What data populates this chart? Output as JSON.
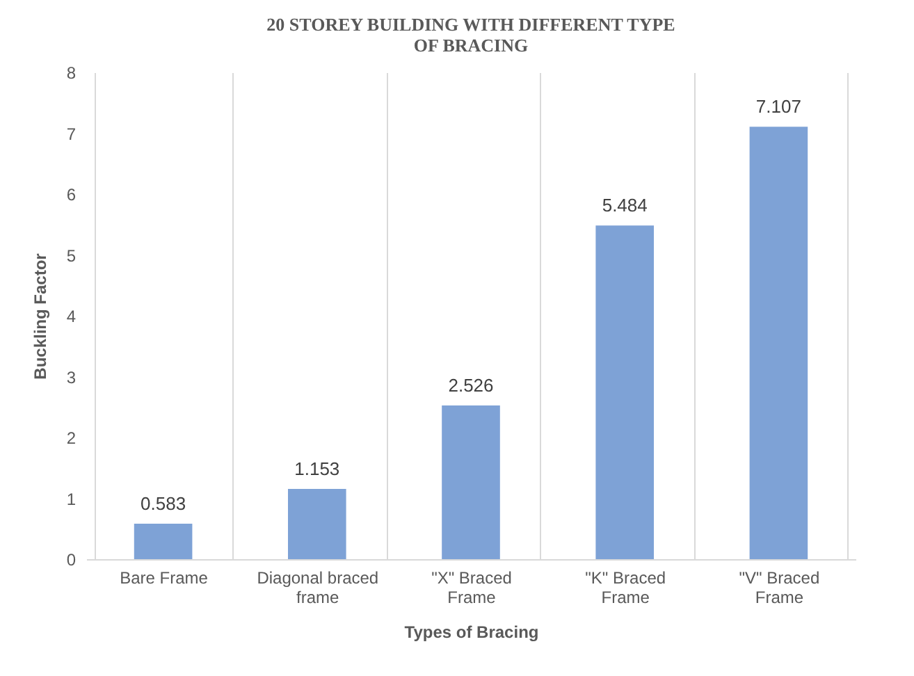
{
  "chart_data": {
    "type": "bar",
    "title": [
      "20 STOREY BUILDING WITH DIFFERENT TYPE",
      "OF BRACING"
    ],
    "xlabel": "Types of Bracing",
    "ylabel": "Buckling Factor",
    "categories": [
      "Bare Frame",
      "Diagonal braced frame",
      "\"X\" Braced Frame",
      "\"K\" Braced Frame",
      "\"V\" Braced Frame"
    ],
    "values": [
      0.583,
      1.153,
      2.526,
      5.484,
      7.107
    ],
    "color": "#7ea2d6",
    "data_labels": true,
    "ylim": [
      0,
      8
    ],
    "yticks": [
      0,
      1,
      2,
      3,
      4,
      5,
      6,
      7,
      8
    ],
    "grid": "x"
  }
}
